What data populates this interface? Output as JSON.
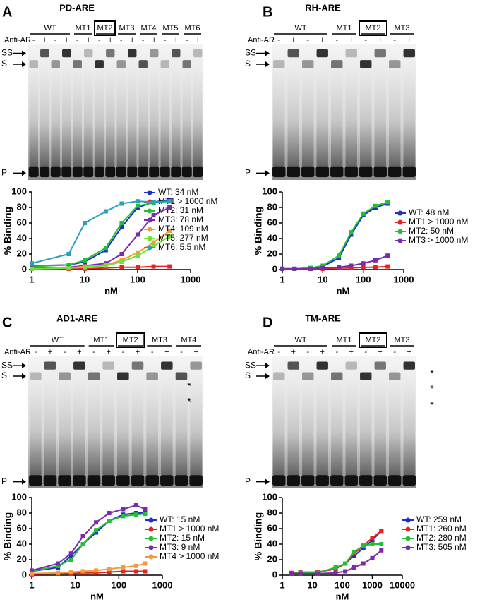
{
  "panels": [
    {
      "letter": "A",
      "title": "PD-ARE",
      "anti": "Anti-AR",
      "bands": [
        "SS",
        "S",
        "P"
      ],
      "asterisks": [],
      "groups": [
        {
          "name": "WT",
          "lanes": [
            "-",
            "+",
            "-",
            "+"
          ]
        },
        {
          "name": "MT1",
          "lanes": [
            "-",
            "+"
          ]
        },
        {
          "name": "MT2",
          "lanes": [
            "-",
            "+"
          ],
          "boxed": true
        },
        {
          "name": "MT3",
          "lanes": [
            "-",
            "+"
          ]
        },
        {
          "name": "MT4",
          "lanes": [
            "-",
            "+"
          ]
        },
        {
          "name": "MT5",
          "lanes": [
            "-",
            "+"
          ]
        },
        {
          "name": "MT6",
          "lanes": [
            "-",
            "+"
          ]
        }
      ]
    },
    {
      "letter": "B",
      "title": "RH-ARE",
      "anti": "Anti-AR",
      "bands": [
        "SS",
        "S",
        "P"
      ],
      "asterisks": [],
      "groups": [
        {
          "name": "WT",
          "lanes": [
            "-",
            "+",
            "-",
            "+"
          ]
        },
        {
          "name": "MT1",
          "lanes": [
            "-",
            "+"
          ]
        },
        {
          "name": "MT2",
          "lanes": [
            "-",
            "+"
          ],
          "boxed": true
        },
        {
          "name": "MT3",
          "lanes": [
            "-",
            "+"
          ]
        }
      ]
    },
    {
      "letter": "C",
      "title": "AD1-ARE",
      "anti": "Anti-AR",
      "bands": [
        "SS",
        "S",
        "P"
      ],
      "asterisks": [
        "*",
        "*"
      ],
      "groups": [
        {
          "name": "WT",
          "lanes": [
            "-",
            "+",
            "-",
            "+"
          ]
        },
        {
          "name": "MT1",
          "lanes": [
            "-",
            "+"
          ]
        },
        {
          "name": "MT2",
          "lanes": [
            "-",
            "+"
          ],
          "boxed": true
        },
        {
          "name": "MT3",
          "lanes": [
            "-",
            "+"
          ]
        },
        {
          "name": "MT4",
          "lanes": [
            "-",
            "+"
          ]
        }
      ]
    },
    {
      "letter": "D",
      "title": "TM-ARE",
      "anti": "Anti-AR",
      "bands": [
        "SS",
        "S",
        "P"
      ],
      "asterisks": [
        "*",
        "*",
        "*"
      ],
      "groups": [
        {
          "name": "WT",
          "lanes": [
            "-",
            "+",
            "-",
            "+"
          ]
        },
        {
          "name": "MT1",
          "lanes": [
            "-",
            "+"
          ]
        },
        {
          "name": "MT2",
          "lanes": [
            "-",
            "+"
          ],
          "boxed": true
        },
        {
          "name": "MT3",
          "lanes": [
            "-",
            "+"
          ]
        }
      ]
    }
  ],
  "chart_data": [
    {
      "type": "line",
      "x_label": "nM",
      "y_label": "% Binding",
      "log_x": true,
      "xlim": [
        1,
        1000
      ],
      "xticks": [
        1,
        10,
        100,
        1000
      ],
      "ylim": [
        0,
        100
      ],
      "yticks": [
        0,
        20,
        40,
        60,
        80,
        100
      ],
      "x": [
        1,
        5,
        10,
        25,
        50,
        100,
        200,
        400
      ],
      "series": [
        {
          "name": "WT: 34 nM",
          "color": "#1f2fc8",
          "values": [
            5,
            6,
            10,
            25,
            55,
            80,
            87,
            90
          ]
        },
        {
          "name": "MT1 > 1000 nM",
          "color": "#e8231f",
          "values": [
            1,
            1,
            1,
            2,
            3,
            3,
            4,
            4
          ]
        },
        {
          "name": "MT2: 31 nM",
          "color": "#22c032",
          "values": [
            4,
            6,
            12,
            28,
            60,
            82,
            86,
            88
          ]
        },
        {
          "name": "MT3: 78 nM",
          "color": "#7a2ab0",
          "values": [
            2,
            3,
            5,
            8,
            20,
            45,
            70,
            80
          ]
        },
        {
          "name": "MT4: 109 nM",
          "color": "#f39a3a",
          "values": [
            1,
            2,
            4,
            6,
            12,
            22,
            35,
            50
          ]
        },
        {
          "name": "MT5: 277 nM",
          "color": "#6ce23a",
          "values": [
            1,
            2,
            3,
            5,
            10,
            18,
            30,
            43
          ]
        },
        {
          "name": "MT6: 5.5 nM",
          "color": "#2aa0bf",
          "values": [
            8,
            20,
            60,
            75,
            85,
            88,
            87,
            88
          ]
        }
      ]
    },
    {
      "type": "line",
      "x_label": "nM",
      "y_label": "% Binding",
      "log_x": true,
      "xlim": [
        1,
        1000
      ],
      "xticks": [
        1,
        10,
        100,
        1000
      ],
      "ylim": [
        0,
        100
      ],
      "yticks": [
        0,
        20,
        40,
        60,
        80,
        100
      ],
      "x": [
        1,
        2,
        5,
        10,
        25,
        50,
        100,
        200,
        400
      ],
      "series": [
        {
          "name": "WT: 48 nM",
          "color": "#1f2fc8",
          "values": [
            1,
            1,
            2,
            4,
            15,
            45,
            70,
            80,
            85
          ]
        },
        {
          "name": "MT1 > 1000 nM",
          "color": "#e8231f",
          "values": [
            1,
            1,
            1,
            1,
            2,
            2,
            3,
            3,
            4
          ]
        },
        {
          "name": "MT2: 50 nM",
          "color": "#22c032",
          "values": [
            1,
            1,
            2,
            5,
            18,
            48,
            72,
            82,
            87
          ]
        },
        {
          "name": "MT3 > 1000 nM",
          "color": "#7a2ab0",
          "values": [
            1,
            1,
            1,
            2,
            3,
            5,
            8,
            12,
            18
          ]
        }
      ]
    },
    {
      "type": "line",
      "x_label": "nM",
      "y_label": "% Binding",
      "log_x": true,
      "xlim": [
        1,
        1000
      ],
      "xticks": [
        1,
        10,
        100,
        1000
      ],
      "ylim": [
        0,
        100
      ],
      "yticks": [
        0,
        20,
        40,
        60,
        80,
        100
      ],
      "x": [
        1,
        4,
        8,
        15,
        30,
        60,
        125,
        250,
        400
      ],
      "series": [
        {
          "name": "WT: 15 nM",
          "color": "#1f2fc8",
          "values": [
            5,
            10,
            25,
            40,
            55,
            70,
            78,
            80,
            80
          ]
        },
        {
          "name": "MT1 > 1000 nM",
          "color": "#e8231f",
          "values": [
            1,
            2,
            2,
            3,
            3,
            4,
            5,
            5,
            5
          ]
        },
        {
          "name": "MT2: 15 nM",
          "color": "#22c032",
          "values": [
            5,
            12,
            20,
            40,
            58,
            70,
            76,
            78,
            79
          ]
        },
        {
          "name": "MT3: 9 nM",
          "color": "#7a2ab0",
          "values": [
            6,
            15,
            28,
            50,
            68,
            80,
            85,
            90,
            85
          ]
        },
        {
          "name": "MT4 > 1000 nM",
          "color": "#f39a3a",
          "values": [
            2,
            3,
            4,
            5,
            6,
            8,
            10,
            12,
            15
          ]
        }
      ]
    },
    {
      "type": "line",
      "x_label": "nM",
      "y_label": "% Binding",
      "log_x": true,
      "xlim": [
        1,
        10000
      ],
      "xticks": [
        1,
        10,
        100,
        1000,
        10000
      ],
      "ylim": [
        0,
        100
      ],
      "yticks": [
        0,
        20,
        40,
        60,
        80,
        100
      ],
      "x": [
        2,
        4,
        15,
        60,
        125,
        250,
        500,
        1000,
        2000
      ],
      "series": [
        {
          "name": "WT: 259 nM",
          "color": "#1f2fc8",
          "values": [
            2,
            3,
            4,
            8,
            15,
            25,
            35,
            45,
            57
          ]
        },
        {
          "name": "MT1: 260 nM",
          "color": "#e8231f",
          "values": [
            3,
            4,
            4,
            8,
            15,
            28,
            38,
            48,
            57
          ]
        },
        {
          "name": "MT2: 280 nM",
          "color": "#22c032",
          "values": [
            2,
            3,
            3,
            10,
            15,
            30,
            38,
            40,
            40
          ]
        },
        {
          "name": "MT3: 505 nM",
          "color": "#7a2ab0",
          "values": [
            2,
            2,
            2,
            3,
            5,
            10,
            15,
            22,
            32
          ]
        }
      ]
    }
  ]
}
